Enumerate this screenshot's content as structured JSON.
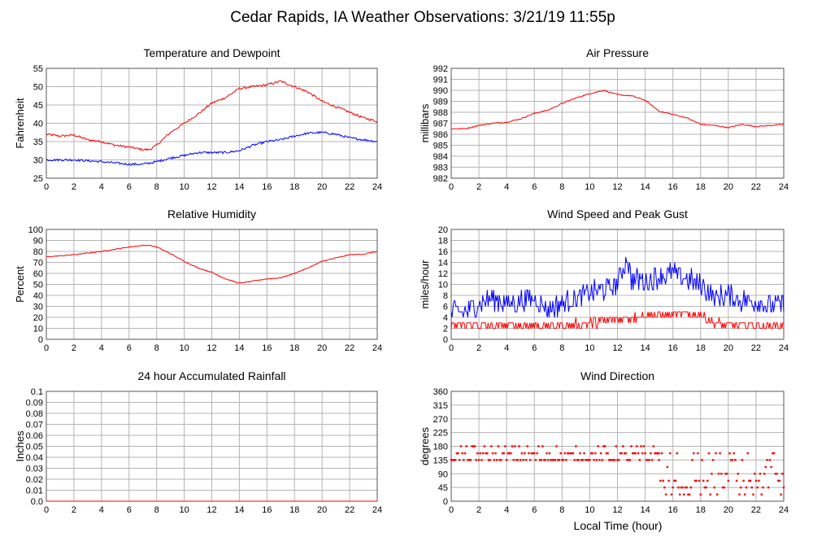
{
  "page": {
    "title": "Cedar Rapids, IA Weather Observations: 3/21/19 11:55p",
    "x_axis_label": "Local Time (hour)"
  },
  "colors": {
    "red": "#ff0000",
    "blue": "#0000ff",
    "grid": "#b4b4b4"
  },
  "chart_data": [
    {
      "id": "temp",
      "type": "line",
      "title": "Temperature and Dewpoint",
      "ylabel": "Fahrenheit",
      "xlabel": "",
      "xlim": [
        0,
        24
      ],
      "ylim": [
        25,
        55
      ],
      "xticks": [
        0,
        2,
        4,
        6,
        8,
        10,
        12,
        14,
        16,
        18,
        20,
        22,
        24
      ],
      "yticks": [
        25,
        30,
        35,
        40,
        45,
        50,
        55
      ],
      "grid": true,
      "series": [
        {
          "color": "#ff0000",
          "noise": 0.3,
          "x": [
            0,
            1,
            2,
            3,
            4,
            5,
            6,
            7,
            7.5,
            8,
            9,
            10,
            11,
            12,
            13,
            14,
            15,
            16,
            17,
            18,
            19,
            20,
            21,
            22,
            23,
            24
          ],
          "y": [
            37,
            36.5,
            36.8,
            35.5,
            35,
            34,
            33.5,
            32.8,
            32.8,
            34,
            37.5,
            40,
            42.5,
            45.5,
            47,
            49.5,
            50,
            50.5,
            51.5,
            50,
            48.5,
            46,
            44.5,
            43,
            41.5,
            40.5
          ]
        },
        {
          "color": "#0000ff",
          "noise": 0.3,
          "x": [
            0,
            2,
            4,
            6,
            7,
            8,
            9,
            10,
            11,
            12,
            13,
            14,
            15,
            16,
            17,
            18,
            19,
            20,
            21,
            22,
            23,
            24
          ],
          "y": [
            30,
            30,
            29.5,
            28.8,
            28.8,
            29.5,
            30.5,
            31.2,
            32,
            32,
            32,
            32.5,
            34,
            35,
            35.5,
            36.5,
            37.3,
            37.5,
            37,
            36,
            35.5,
            35
          ]
        }
      ]
    },
    {
      "id": "pressure",
      "type": "line",
      "title": "Air Pressure",
      "ylabel": "millibars",
      "xlabel": "",
      "xlim": [
        0,
        24
      ],
      "ylim": [
        982,
        992
      ],
      "xticks": [
        0,
        2,
        4,
        6,
        8,
        10,
        12,
        14,
        16,
        18,
        20,
        22,
        24
      ],
      "yticks": [
        982,
        983,
        984,
        985,
        986,
        987,
        988,
        989,
        990,
        991,
        992
      ],
      "grid": true,
      "series": [
        {
          "color": "#ff0000",
          "noise": 0.05,
          "x": [
            0,
            1,
            2,
            3,
            4,
            5,
            6,
            7,
            8,
            9,
            10,
            11,
            12,
            13,
            14,
            15,
            16,
            17,
            18,
            19,
            20,
            21,
            22,
            23,
            24
          ],
          "y": [
            986.5,
            986.5,
            986.8,
            987,
            987.1,
            987.4,
            987.9,
            988.2,
            988.8,
            989.3,
            989.7,
            990,
            989.6,
            989.5,
            989.1,
            988.1,
            987.8,
            987.5,
            986.9,
            986.8,
            986.6,
            986.9,
            986.7,
            986.8,
            986.9
          ]
        }
      ]
    },
    {
      "id": "humidity",
      "type": "line",
      "title": "Relative Humidity",
      "ylabel": "Percent",
      "xlabel": "",
      "xlim": [
        0,
        24
      ],
      "ylim": [
        0,
        100
      ],
      "xticks": [
        0,
        2,
        4,
        6,
        8,
        10,
        12,
        14,
        16,
        18,
        20,
        22,
        24
      ],
      "yticks": [
        0,
        10,
        20,
        30,
        40,
        50,
        60,
        70,
        80,
        90,
        100
      ],
      "grid": true,
      "series": [
        {
          "color": "#ff0000",
          "noise": 0.4,
          "x": [
            0,
            2,
            4,
            6,
            7,
            7.5,
            8,
            9,
            10,
            11,
            12,
            13,
            14,
            15,
            16,
            17,
            18,
            19,
            20,
            21,
            22,
            23,
            24
          ],
          "y": [
            75,
            77,
            80,
            84,
            85.5,
            85.5,
            84,
            78,
            71,
            65,
            61,
            55,
            51,
            53,
            55,
            56,
            60,
            65,
            71,
            74,
            77,
            77.5,
            80
          ]
        }
      ]
    },
    {
      "id": "wind",
      "type": "line",
      "title": "Wind Speed and Peak Gust",
      "ylabel": "miles/hour",
      "xlabel": "",
      "xlim": [
        0,
        24
      ],
      "ylim": [
        0,
        20
      ],
      "xticks": [
        0,
        2,
        4,
        6,
        8,
        10,
        12,
        14,
        16,
        18,
        20,
        22,
        24
      ],
      "yticks": [
        0,
        2,
        4,
        6,
        8,
        10,
        12,
        14,
        16,
        18,
        20
      ],
      "grid": true,
      "series": [
        {
          "color": "#0000ff",
          "noise": 2.0,
          "quant": 1,
          "x": [
            0,
            1,
            2,
            3,
            4,
            5,
            6,
            7,
            8,
            9,
            10,
            11,
            12,
            12.7,
            13,
            14,
            15,
            16,
            17,
            18,
            19,
            20,
            21,
            22,
            23,
            24
          ],
          "y": [
            5,
            5,
            6.5,
            7.5,
            6.5,
            7,
            7.5,
            5.5,
            6.5,
            7.5,
            8.5,
            9,
            10,
            15,
            11,
            10.5,
            11.5,
            12,
            11,
            10,
            7.5,
            8,
            7,
            7,
            6,
            6.5
          ]
        },
        {
          "color": "#ff0000",
          "noise": 0.9,
          "quant": 1,
          "x": [
            0,
            2,
            4,
            6,
            8,
            10,
            12,
            14,
            16,
            18,
            19,
            20,
            21,
            22,
            24
          ],
          "y": [
            2.5,
            2.5,
            2.5,
            2.5,
            2.5,
            3,
            3.5,
            4.5,
            4.5,
            4.5,
            3,
            2.5,
            2.5,
            2.5,
            2.5
          ]
        }
      ]
    },
    {
      "id": "rain",
      "type": "line",
      "title": "24 hour Accumulated Rainfall",
      "ylabel": "Inches",
      "xlabel": "",
      "xlim": [
        0,
        24
      ],
      "ylim": [
        0,
        0.1
      ],
      "xticks": [
        0,
        2,
        4,
        6,
        8,
        10,
        12,
        14,
        16,
        18,
        20,
        22,
        24
      ],
      "yticks": [
        "0.0",
        "0.01",
        "0.02",
        "0.03",
        "0.04",
        "0.05",
        "0.06",
        "0.07",
        "0.08",
        "0.09",
        "0.1"
      ],
      "grid": true,
      "series": [
        {
          "color": "#ff0000",
          "noise": 0,
          "x": [
            0,
            24
          ],
          "y": [
            0,
            0
          ]
        }
      ]
    },
    {
      "id": "direction",
      "type": "scatter",
      "title": "Wind Direction",
      "ylabel": "degrees",
      "xlabel": "Local Time (hour)",
      "xlim": [
        0,
        24
      ],
      "ylim": [
        0,
        360
      ],
      "xticks": [
        0,
        2,
        4,
        6,
        8,
        10,
        12,
        14,
        16,
        18,
        20,
        22,
        24
      ],
      "yticks": [
        0,
        45,
        90,
        135,
        180,
        225,
        270,
        315,
        360
      ],
      "grid": true,
      "series": [
        {
          "color": "#ff0000",
          "step": 0.1,
          "segments": [
            {
              "from": 0,
              "to": 15,
              "levels": [
                135,
                135,
                135,
                157,
                157,
                180
              ]
            },
            {
              "from": 15,
              "to": 24,
              "levels": [
                45,
                45,
                67,
                67,
                90,
                112,
                135,
                157,
                22
              ]
            }
          ]
        }
      ]
    }
  ]
}
